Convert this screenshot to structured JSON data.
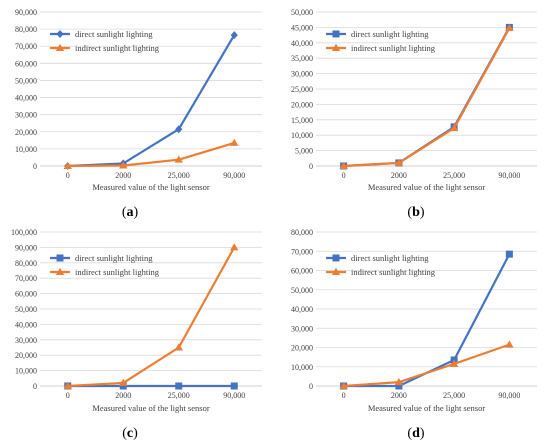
{
  "colors": {
    "direct": "#4472c4",
    "indirect": "#ed7d31",
    "grid": "#d9d9d9",
    "axis": "#bfbfbf"
  },
  "chart_data": [
    {
      "type": "line",
      "panel": "a",
      "caption_open": "(",
      "caption_letter": "a",
      "caption_close": ")",
      "categories": [
        "0",
        "2000",
        "25,000",
        "90,000"
      ],
      "xlabel": "Measured value of the light sensor",
      "ylim": [
        0,
        90000
      ],
      "yticks": [
        "0",
        "10,000",
        "20,000",
        "30,000",
        "40,000",
        "50,000",
        "60,000",
        "70,000",
        "80,000",
        "90,000"
      ],
      "grid": true,
      "legend": "top-left",
      "series": [
        {
          "name": "direct sunlight lighting",
          "marker": "diamond",
          "values": [
            0,
            1500,
            21500,
            76500
          ]
        },
        {
          "name": "indirect sunlight lighting",
          "marker": "triangle",
          "values": [
            0,
            300,
            3700,
            13500
          ]
        }
      ]
    },
    {
      "type": "line",
      "panel": "b",
      "caption_open": "(",
      "caption_letter": "b",
      "caption_close": ")",
      "categories": [
        "0",
        "2000",
        "25,000",
        "90,000"
      ],
      "xlabel": "Measured value of the light sensor",
      "ylim": [
        0,
        50000
      ],
      "yticks": [
        "0",
        "5,000",
        "10,000",
        "15,000",
        "20,000",
        "25,000",
        "30,000",
        "35,000",
        "40,000",
        "45,000",
        "50,000"
      ],
      "grid": true,
      "legend": "top-left",
      "series": [
        {
          "name": "direct sunlight lighting",
          "marker": "square",
          "values": [
            0,
            1000,
            12700,
            45000
          ]
        },
        {
          "name": "indirect sunlight lighting",
          "marker": "triangle",
          "values": [
            0,
            1000,
            12300,
            44800
          ]
        }
      ]
    },
    {
      "type": "line",
      "panel": "c",
      "caption_open": "(",
      "caption_letter": "c",
      "caption_close": ")",
      "categories": [
        "0",
        "2000",
        "25,000",
        "90,000"
      ],
      "xlabel": "Measured value of the light sensor",
      "ylim": [
        0,
        100000
      ],
      "yticks": [
        "0",
        "10,000",
        "20,000",
        "30,000",
        "40,000",
        "50,000",
        "60,000",
        "70,000",
        "80,000",
        "90,000",
        "100,000"
      ],
      "grid": true,
      "legend": "top-left",
      "series": [
        {
          "name": "direct sunlight lighting",
          "marker": "square",
          "values": [
            0,
            0,
            0,
            0
          ]
        },
        {
          "name": "indirect sunlight lighting",
          "marker": "triangle",
          "values": [
            0,
            2000,
            25000,
            90000
          ]
        }
      ]
    },
    {
      "type": "line",
      "panel": "d",
      "caption_open": "(",
      "caption_letter": "d",
      "caption_close": ")",
      "categories": [
        "0",
        "2000",
        "25,000",
        "90,000"
      ],
      "xlabel": "Measured value of the light sensor",
      "ylim": [
        0,
        80000
      ],
      "yticks": [
        "0",
        "10,000",
        "20,000",
        "30,000",
        "40,000",
        "50,000",
        "60,000",
        "70,000",
        "80,000"
      ],
      "grid": true,
      "legend": "top-left",
      "series": [
        {
          "name": "direct sunlight lighting",
          "marker": "square",
          "values": [
            0,
            0,
            13500,
            68500
          ]
        },
        {
          "name": "indirect sunlight lighting",
          "marker": "triangle",
          "values": [
            0,
            2000,
            11500,
            21500
          ]
        }
      ]
    }
  ]
}
